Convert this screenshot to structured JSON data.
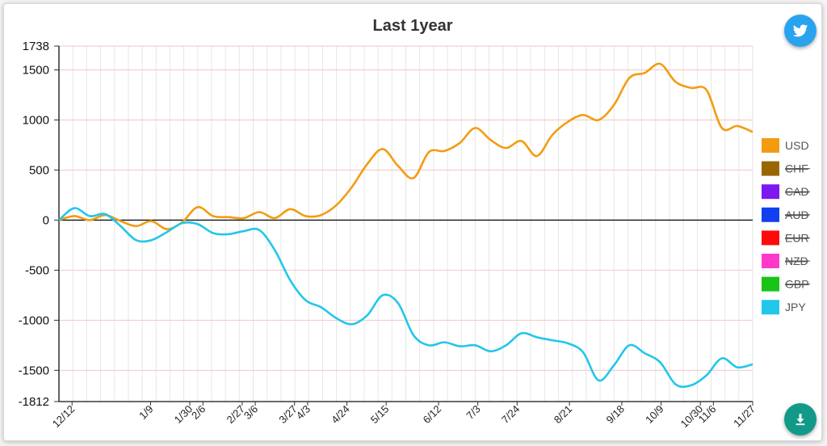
{
  "chart_data": {
    "type": "line",
    "title": "Last 1year",
    "ylim": [
      -1812,
      1738
    ],
    "yticks": [
      "1738",
      "1500",
      "1000",
      "500",
      "0",
      "-500",
      "-1000",
      "-1500",
      "-1812"
    ],
    "xtick_labels": [
      "12/12",
      "1/9",
      "1/30",
      "2/6",
      "2/27",
      "3/6",
      "3/27",
      "4/3",
      "4/24",
      "5/15",
      "6/12",
      "7/3",
      "7/24",
      "8/21",
      "9/18",
      "10/9",
      "10/30",
      "11/6",
      "11/27"
    ],
    "grid": true,
    "legend_position": "right",
    "series": [
      {
        "name": "USD",
        "color": "#f39c12",
        "hidden": false,
        "values": [
          0,
          40,
          0,
          50,
          -10,
          -60,
          -10,
          -90,
          -20,
          130,
          40,
          30,
          20,
          80,
          20,
          110,
          40,
          50,
          150,
          330,
          560,
          710,
          540,
          420,
          680,
          690,
          770,
          920,
          800,
          720,
          790,
          640,
          850,
          980,
          1050,
          1000,
          1150,
          1420,
          1470,
          1560,
          1380,
          1320,
          1300,
          920,
          940,
          880
        ]
      },
      {
        "name": "CHF",
        "color": "#996600",
        "hidden": true,
        "values": []
      },
      {
        "name": "CAD",
        "color": "#7d18f0",
        "hidden": true,
        "values": []
      },
      {
        "name": "AUD",
        "color": "#1040f0",
        "hidden": true,
        "values": []
      },
      {
        "name": "EUR",
        "color": "#ff0a0a",
        "hidden": true,
        "values": []
      },
      {
        "name": "NZD",
        "color": "#ff38c8",
        "hidden": true,
        "values": []
      },
      {
        "name": "GBP",
        "color": "#18c418",
        "hidden": true,
        "values": []
      },
      {
        "name": "JPY",
        "color": "#22c7ea",
        "hidden": false,
        "values": [
          0,
          120,
          40,
          60,
          -60,
          -200,
          -200,
          -120,
          -30,
          -40,
          -130,
          -140,
          -110,
          -100,
          -300,
          -600,
          -800,
          -870,
          -980,
          -1040,
          -950,
          -750,
          -830,
          -1150,
          -1250,
          -1220,
          -1260,
          -1250,
          -1310,
          -1250,
          -1130,
          -1170,
          -1200,
          -1230,
          -1320,
          -1600,
          -1450,
          -1250,
          -1330,
          -1420,
          -1640,
          -1650,
          -1550,
          -1380,
          -1470,
          -1440
        ]
      }
    ]
  },
  "buttons": {
    "twitter": "twitter-icon",
    "download": "download-icon"
  }
}
